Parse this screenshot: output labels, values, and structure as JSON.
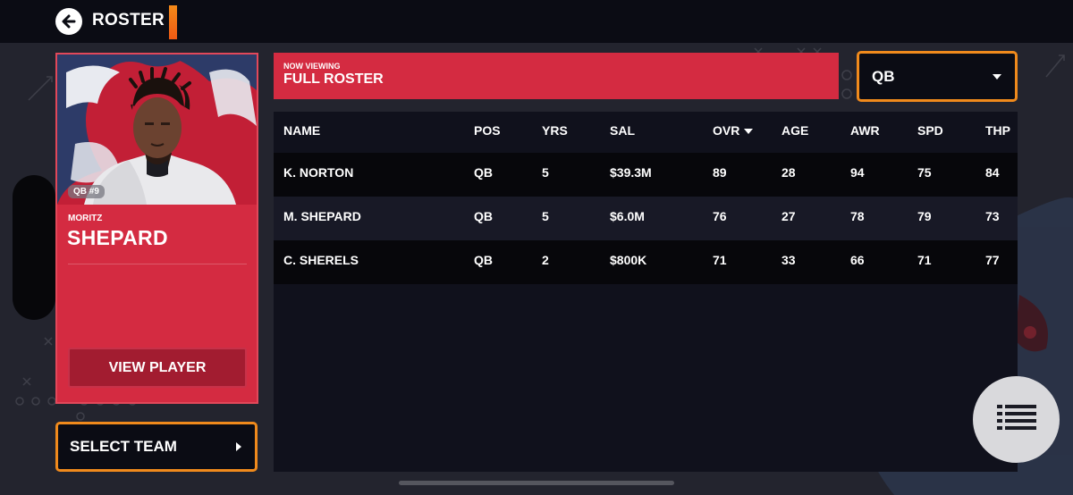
{
  "header": {
    "title": "ROSTER"
  },
  "player_card": {
    "jersey": "QB #9",
    "first_name": "MORITZ",
    "last_name": "SHEPARD",
    "view_player_label": "VIEW PLAYER"
  },
  "select_team_label": "SELECT TEAM",
  "viewing": {
    "label": "NOW VIEWING",
    "value": "FULL ROSTER"
  },
  "position_filter": {
    "selected": "QB"
  },
  "roster": {
    "columns": [
      "NAME",
      "POS",
      "YRS",
      "SAL",
      "OVR",
      "AGE",
      "AWR",
      "SPD",
      "THP"
    ],
    "sorted_by": "OVR",
    "rows": [
      [
        "K. NORTON",
        "QB",
        "5",
        "$39.3M",
        "89",
        "28",
        "94",
        "75",
        "84"
      ],
      [
        "M. SHEPARD",
        "QB",
        "5",
        "$6.0M",
        "76",
        "27",
        "78",
        "79",
        "73"
      ],
      [
        "C. SHERELS",
        "QB",
        "2",
        "$800K",
        "71",
        "33",
        "66",
        "71",
        "77"
      ]
    ]
  },
  "icons": {
    "back": "arrow-left-circle-icon",
    "dropdown": "caret-down-icon",
    "select_team": "caret-right-icon",
    "menu": "list-menu-icon"
  },
  "colors": {
    "accent_orange": "#f08a1c",
    "team_red": "#d42b41",
    "background": "#23242e",
    "bar": "#0b0c14"
  }
}
